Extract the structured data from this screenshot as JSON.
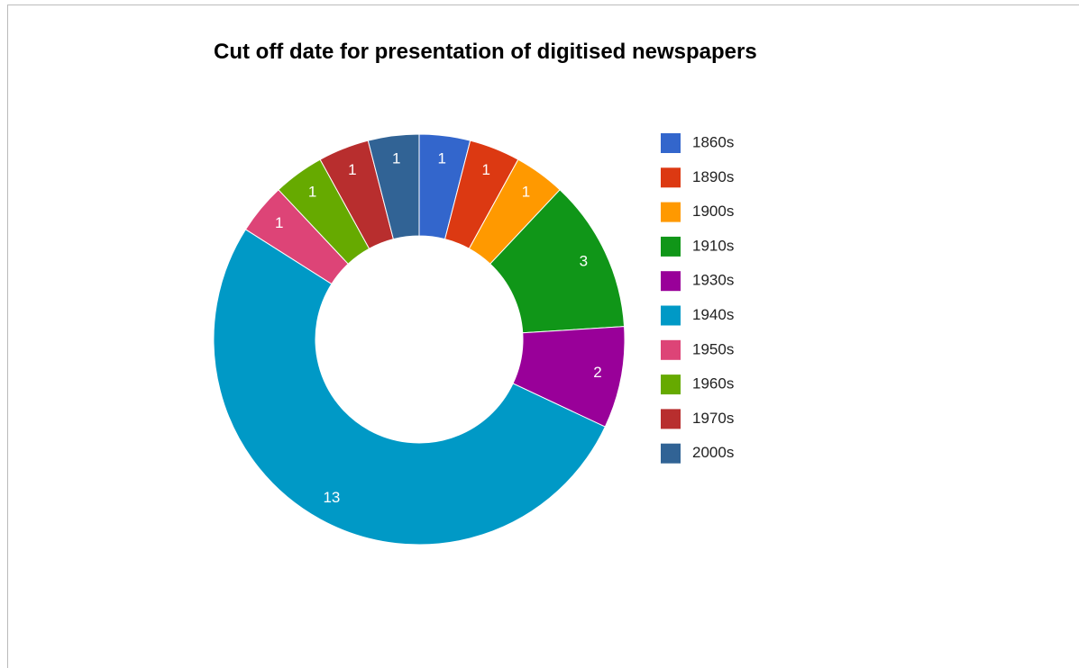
{
  "chart_data": {
    "type": "pie",
    "donut": true,
    "title": "Cut off date for presentation of digitised newspapers",
    "categories": [
      "1860s",
      "1890s",
      "1900s",
      "1910s",
      "1930s",
      "1940s",
      "1950s",
      "1960s",
      "1970s",
      "2000s"
    ],
    "values": [
      1,
      1,
      1,
      3,
      2,
      13,
      1,
      1,
      1,
      1
    ],
    "colors": [
      "#3366cc",
      "#dc3912",
      "#ff9900",
      "#109618",
      "#990099",
      "#0099c6",
      "#dd4477",
      "#66aa00",
      "#b82e2e",
      "#316395"
    ],
    "legend": "right"
  }
}
